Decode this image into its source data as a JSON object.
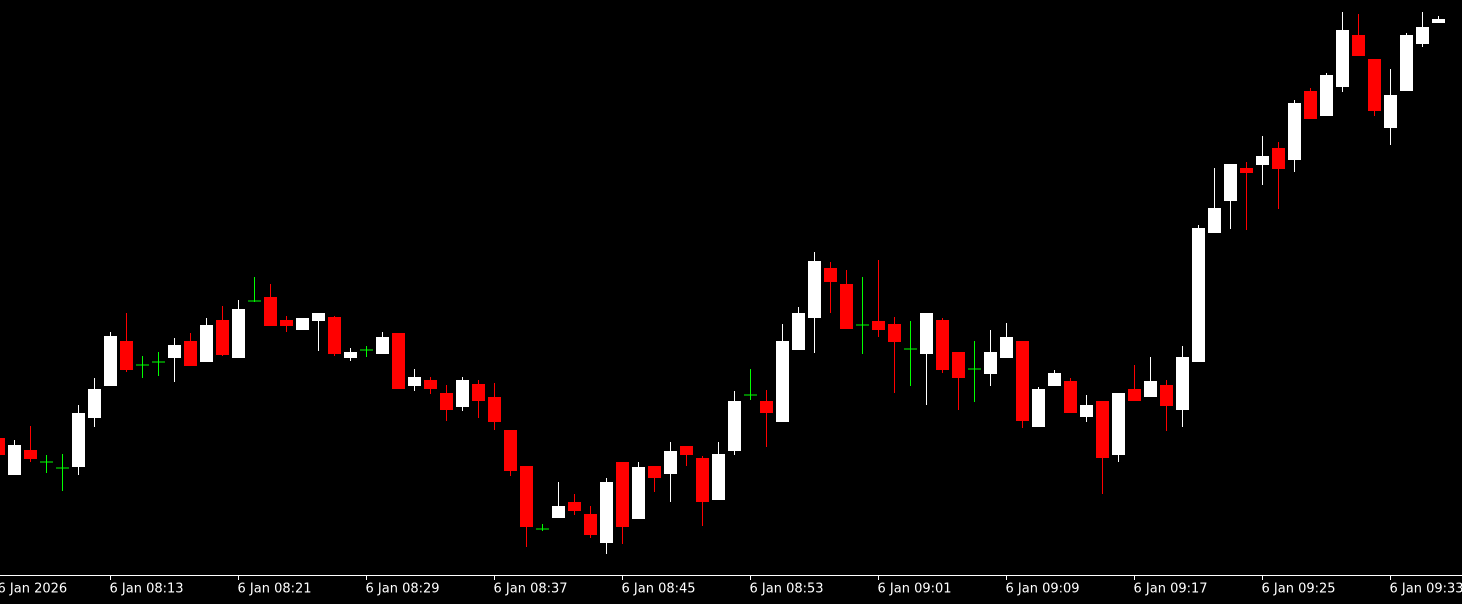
{
  "chart_data": {
    "type": "candlestick",
    "categories": [
      "6 Jan 2026",
      null,
      null,
      null,
      null,
      null,
      null,
      "6 Jan 08:13",
      null,
      null,
      null,
      null,
      null,
      null,
      null,
      "6 Jan 08:21",
      null,
      null,
      null,
      null,
      null,
      null,
      null,
      "6 Jan 08:29",
      null,
      null,
      null,
      null,
      null,
      null,
      null,
      "6 Jan 08:37",
      null,
      null,
      null,
      null,
      null,
      null,
      null,
      "6 Jan 08:45",
      null,
      null,
      null,
      null,
      null,
      null,
      null,
      "6 Jan 08:53",
      null,
      null,
      null,
      null,
      null,
      null,
      null,
      "6 Jan 09:01",
      null,
      null,
      null,
      null,
      null,
      null,
      null,
      "6 Jan 09:09",
      null,
      null,
      null,
      null,
      null,
      null,
      null,
      "6 Jan 09:17",
      null,
      null,
      null,
      null,
      null,
      null,
      null,
      "6 Jan 09:25",
      null,
      null,
      null,
      null,
      null,
      null,
      null,
      "6 Jan 09:33",
      null,
      null,
      null
    ],
    "open": [
      137,
      100,
      125,
      113,
      107,
      108,
      157,
      189,
      234,
      210,
      213,
      217,
      234,
      213,
      255,
      217,
      274,
      278,
      255,
      245,
      254,
      258,
      217,
      225,
      221,
      242,
      189,
      195,
      182,
      168,
      191,
      178,
      145,
      109,
      46,
      57,
      73,
      61,
      32,
      113,
      56,
      109,
      101,
      129,
      117,
      75,
      124,
      180,
      174,
      153,
      225,
      257,
      307,
      291,
      250,
      254,
      251,
      226,
      221,
      255,
      223,
      206,
      201,
      217,
      234,
      148,
      189,
      194,
      158,
      174,
      120,
      186,
      178,
      190,
      165,
      213,
      342,
      374,
      407,
      410,
      427,
      415,
      484,
      459,
      488,
      540,
      516,
      447,
      484,
      531,
      552
    ],
    "high": [
      139,
      135,
      149,
      120,
      121,
      170,
      197,
      243,
      262,
      219,
      223,
      237,
      242,
      257,
      269,
      275,
      298,
      291,
      259,
      257,
      262,
      259,
      227,
      229,
      243,
      242,
      206,
      198,
      190,
      198,
      195,
      192,
      145,
      109,
      51,
      93,
      81,
      69,
      97,
      113,
      113,
      109,
      133,
      129,
      119,
      133,
      184,
      206,
      185,
      251,
      268,
      323,
      313,
      305,
      298,
      315,
      258,
      254,
      262,
      257,
      223,
      234,
      245,
      252,
      234,
      188,
      205,
      197,
      180,
      174,
      182,
      210,
      218,
      195,
      229,
      350,
      407,
      411,
      413,
      439,
      433,
      475,
      487,
      502,
      563,
      561,
      516,
      506,
      542,
      563,
      559
    ],
    "low": [
      119,
      100,
      113,
      102,
      84,
      100,
      148,
      189,
      203,
      197,
      199,
      193,
      209,
      213,
      219,
      217,
      273,
      249,
      243,
      245,
      224,
      219,
      214,
      218,
      221,
      186,
      184,
      181,
      154,
      164,
      157,
      145,
      99,
      28,
      44,
      57,
      60,
      37,
      21,
      31,
      56,
      83,
      73,
      109,
      49,
      75,
      120,
      175,
      128,
      153,
      225,
      222,
      262,
      246,
      221,
      238,
      182,
      189,
      170,
      202,
      165,
      173,
      189,
      217,
      147,
      148,
      189,
      162,
      153,
      81,
      113,
      174,
      178,
      144,
      148,
      213,
      342,
      346,
      345,
      390,
      366,
      403,
      456,
      459,
      483,
      519,
      459,
      430,
      484,
      528,
      552
    ],
    "close": [
      120,
      130,
      116,
      113,
      107,
      162,
      186,
      239,
      205,
      210,
      213,
      230,
      209,
      250,
      220,
      266,
      274,
      249,
      249,
      257,
      262,
      221,
      223,
      225,
      238,
      186,
      198,
      186,
      165,
      195,
      174,
      153,
      104,
      48,
      46,
      69,
      64,
      40,
      93,
      48,
      108,
      97,
      124,
      120,
      73,
      121,
      174,
      180,
      162,
      234,
      262,
      314,
      293,
      246,
      250,
      245,
      233,
      226,
      262,
      205,
      197,
      206,
      223,
      238,
      154,
      186,
      202,
      162,
      170,
      117,
      182,
      174,
      194,
      169,
      218,
      347,
      367,
      411,
      402,
      419,
      406,
      472,
      456,
      500,
      545,
      519,
      464,
      480,
      540,
      548,
      556
    ],
    "up_color": "#ffffff",
    "down_color": "#ff0000",
    "doji_color": "#00ff00",
    "ylim": [
      0,
      575
    ]
  }
}
